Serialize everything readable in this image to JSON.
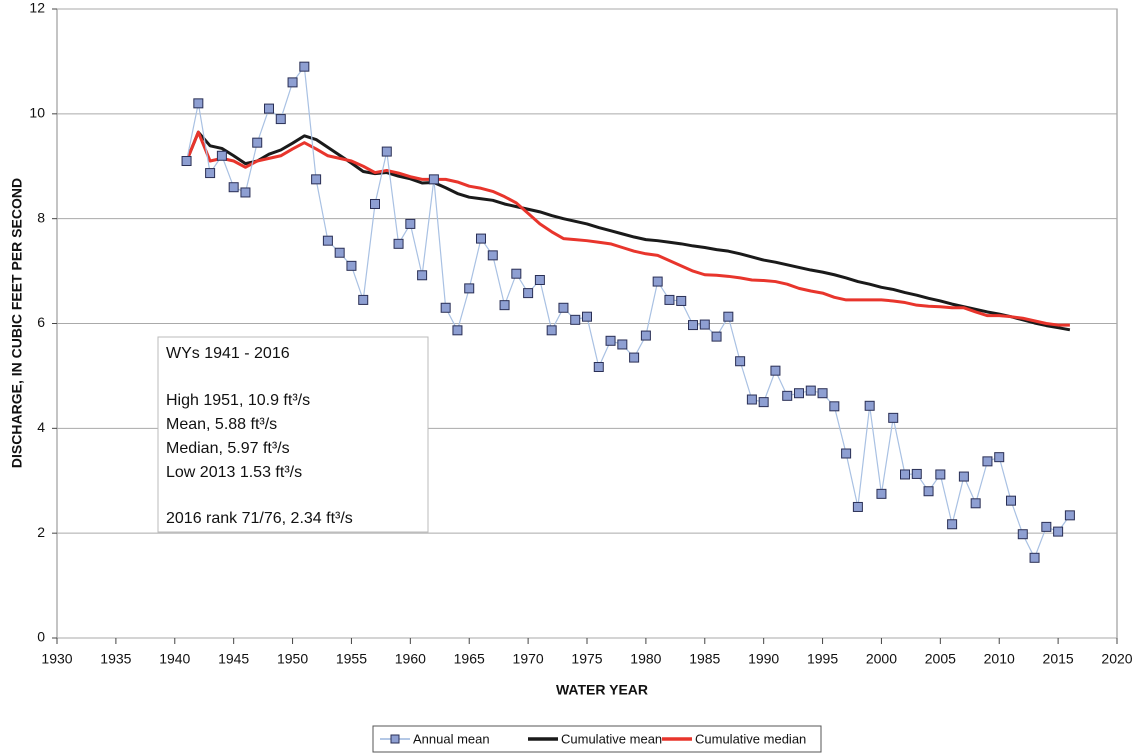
{
  "chart_data": {
    "type": "line",
    "xlabel": "WATER YEAR",
    "ylabel": "DISCHARGE, IN CUBIC FEET PER SECOND",
    "x": [
      1941,
      1942,
      1943,
      1944,
      1945,
      1946,
      1947,
      1948,
      1949,
      1950,
      1951,
      1952,
      1953,
      1954,
      1955,
      1956,
      1957,
      1958,
      1959,
      1960,
      1961,
      1962,
      1963,
      1964,
      1965,
      1966,
      1967,
      1968,
      1969,
      1970,
      1971,
      1972,
      1973,
      1974,
      1975,
      1976,
      1977,
      1978,
      1979,
      1980,
      1981,
      1982,
      1983,
      1984,
      1985,
      1986,
      1987,
      1988,
      1989,
      1990,
      1991,
      1992,
      1993,
      1994,
      1995,
      1996,
      1997,
      1998,
      1999,
      2000,
      2001,
      2002,
      2003,
      2004,
      2005,
      2006,
      2007,
      2008,
      2009,
      2010,
      2011,
      2012,
      2013,
      2014,
      2015,
      2016
    ],
    "series": [
      {
        "name": "Annual mean",
        "color": "#a9c1e3",
        "marker_color": "#8e9fd2",
        "marker": "square",
        "values": [
          9.1,
          10.2,
          8.87,
          9.2,
          8.6,
          8.5,
          9.45,
          10.1,
          9.9,
          10.6,
          10.9,
          8.75,
          7.58,
          7.35,
          7.1,
          6.45,
          8.28,
          9.28,
          7.52,
          7.9,
          6.92,
          8.75,
          6.3,
          5.87,
          6.67,
          7.62,
          7.3,
          6.35,
          6.95,
          6.58,
          6.83,
          5.87,
          6.3,
          6.07,
          6.13,
          5.17,
          5.67,
          5.6,
          5.35,
          5.77,
          6.8,
          6.45,
          6.43,
          5.97,
          5.98,
          5.75,
          6.13,
          5.28,
          4.55,
          4.5,
          5.1,
          4.62,
          4.67,
          4.72,
          4.67,
          4.42,
          3.52,
          2.5,
          4.43,
          2.75,
          4.2,
          3.12,
          3.13,
          2.8,
          3.12,
          2.17,
          3.08,
          2.57,
          3.37,
          3.45,
          2.62,
          1.98,
          1.53,
          2.12,
          2.03,
          2.34
        ]
      },
      {
        "name": "Cumulative mean",
        "color": "#1a1a1a",
        "values": [
          9.1,
          9.65,
          9.39,
          9.34,
          9.2,
          9.05,
          9.1,
          9.23,
          9.31,
          9.44,
          9.58,
          9.51,
          9.36,
          9.21,
          9.06,
          8.9,
          8.86,
          8.88,
          8.81,
          8.76,
          8.68,
          8.69,
          8.59,
          8.48,
          8.41,
          8.38,
          8.35,
          8.28,
          8.23,
          8.18,
          8.13,
          8.06,
          8.0,
          7.95,
          7.9,
          7.83,
          7.77,
          7.71,
          7.65,
          7.6,
          7.58,
          7.55,
          7.52,
          7.48,
          7.45,
          7.41,
          7.38,
          7.33,
          7.27,
          7.21,
          7.17,
          7.12,
          7.07,
          7.02,
          6.98,
          6.93,
          6.87,
          6.8,
          6.75,
          6.69,
          6.65,
          6.59,
          6.54,
          6.48,
          6.43,
          6.37,
          6.32,
          6.27,
          6.22,
          6.18,
          6.13,
          6.07,
          6.01,
          5.96,
          5.92,
          5.88
        ]
      },
      {
        "name": "Cumulative median",
        "color": "#e8352c",
        "values": [
          9.1,
          9.65,
          9.1,
          9.15,
          9.1,
          8.98,
          9.1,
          9.15,
          9.2,
          9.33,
          9.45,
          9.33,
          9.2,
          9.15,
          9.1,
          9.0,
          8.88,
          8.92,
          8.87,
          8.8,
          8.75,
          8.75,
          8.75,
          8.7,
          8.62,
          8.58,
          8.52,
          8.42,
          8.3,
          8.1,
          7.9,
          7.75,
          7.62,
          7.6,
          7.58,
          7.55,
          7.52,
          7.45,
          7.38,
          7.33,
          7.3,
          7.2,
          7.1,
          7.0,
          6.93,
          6.92,
          6.9,
          6.87,
          6.83,
          6.82,
          6.8,
          6.75,
          6.67,
          6.62,
          6.58,
          6.5,
          6.45,
          6.45,
          6.45,
          6.45,
          6.43,
          6.4,
          6.35,
          6.33,
          6.32,
          6.3,
          6.3,
          6.22,
          6.15,
          6.15,
          6.13,
          6.1,
          6.05,
          6.0,
          5.97,
          5.97
        ]
      }
    ],
    "xlim": [
      1930,
      2020
    ],
    "xticks": [
      1930,
      1935,
      1940,
      1945,
      1950,
      1955,
      1960,
      1965,
      1970,
      1975,
      1980,
      1985,
      1990,
      1995,
      2000,
      2005,
      2010,
      2015,
      2020
    ],
    "ylim": [
      0,
      12
    ],
    "yticks": [
      0,
      2,
      4,
      6,
      8,
      10,
      12
    ],
    "grid": true,
    "legend": "bottom",
    "annotation": [
      "WYs 1941 - 2016",
      "High 1951, 10.9 ft³/s",
      "Mean, 5.88 ft³/s",
      "Median, 5.97 ft³/s",
      "Low 2013 1.53 ft³/s",
      "2016 rank 71/76, 2.34 ft³/s"
    ]
  }
}
